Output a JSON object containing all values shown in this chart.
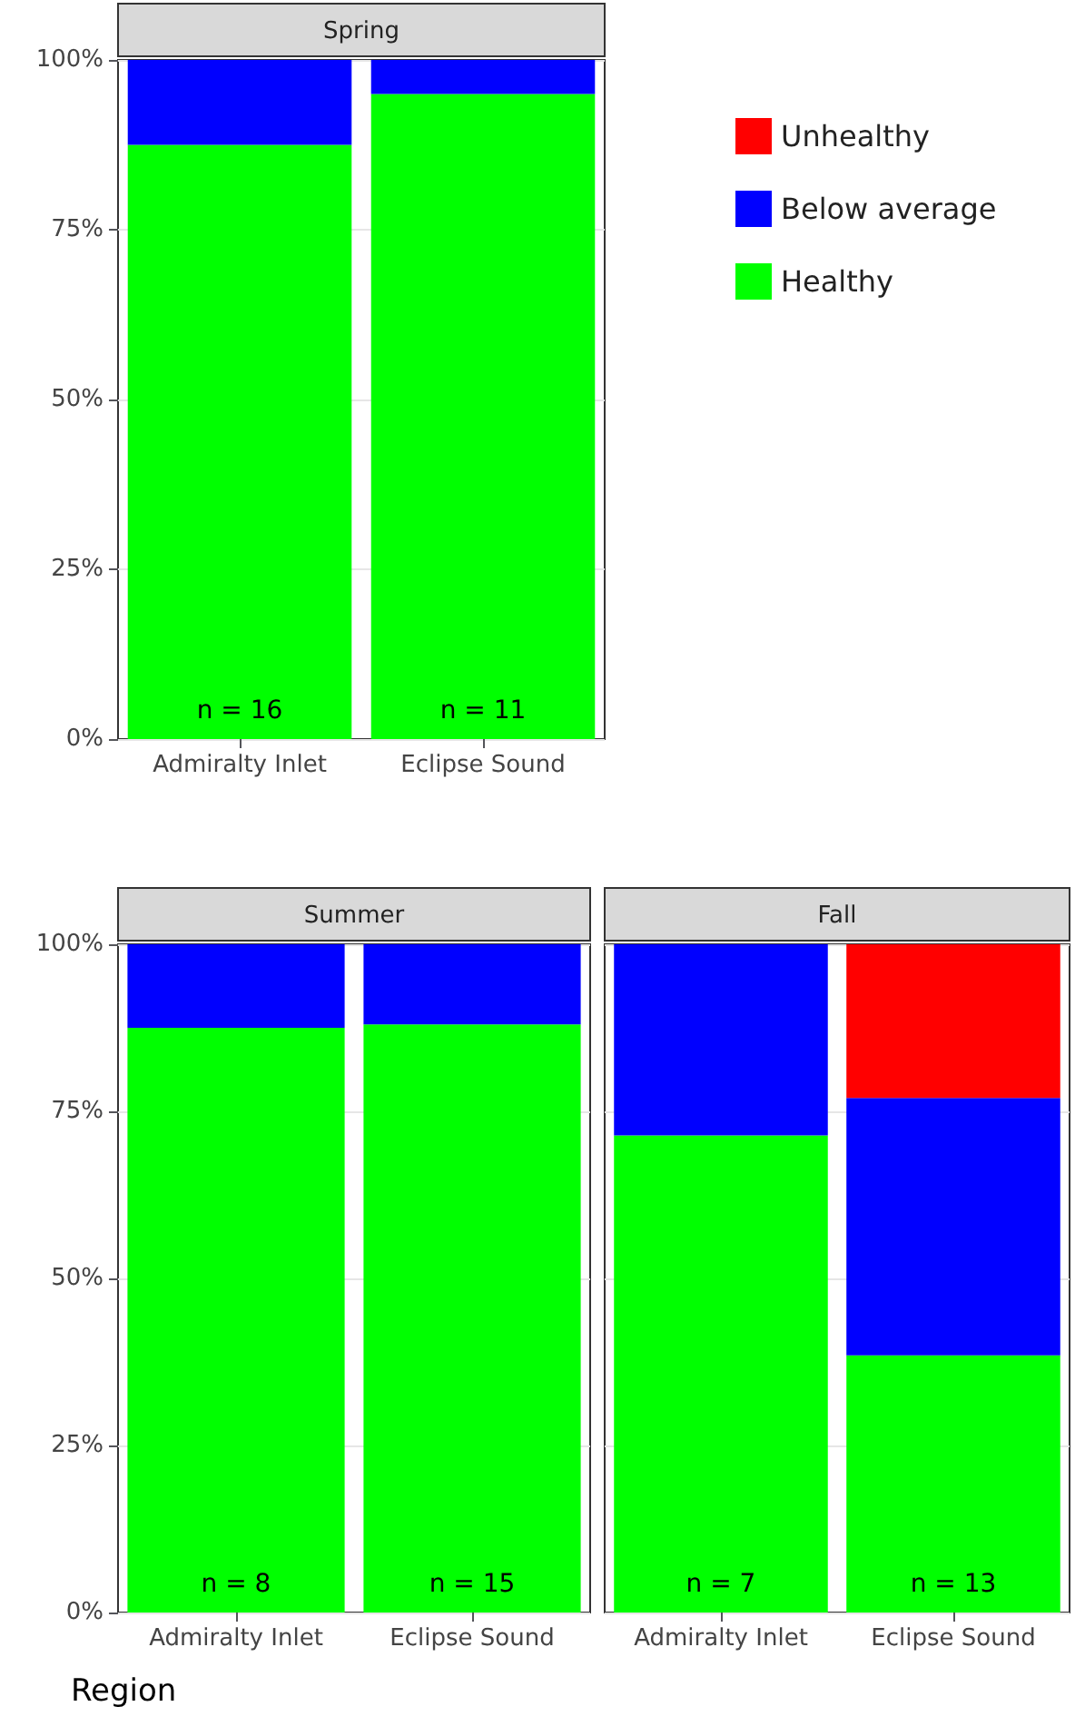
{
  "chart_data": [
    {
      "type": "bar",
      "title": "Spring",
      "stacked": true,
      "categories": [
        "Admiralty Inlet",
        "Eclipse Sound"
      ],
      "ylim": [
        0,
        100
      ],
      "yticks": [
        {
          "value": 0,
          "label": "0%"
        },
        {
          "value": 25,
          "label": "25%"
        },
        {
          "value": 50,
          "label": "50%"
        },
        {
          "value": 75,
          "label": "75%"
        },
        {
          "value": 100,
          "label": "100%"
        }
      ],
      "grid": "y",
      "series": [
        {
          "color": "#00ff00",
          "values": [
            87.5,
            95
          ]
        },
        {
          "color": "#0000ff",
          "values": [
            12.5,
            5
          ]
        }
      ],
      "annotations": [
        "n = 16",
        "n = 11"
      ]
    },
    {
      "type": "bar",
      "title": "Summer",
      "xlabel": "Region",
      "stacked": true,
      "categories": [
        "Admiralty Inlet",
        "Eclipse Sound"
      ],
      "ylim": [
        0,
        100
      ],
      "yticks": [
        {
          "value": 0,
          "label": "0%"
        },
        {
          "value": 25,
          "label": "25%"
        },
        {
          "value": 50,
          "label": "50%"
        },
        {
          "value": 75,
          "label": "75%"
        },
        {
          "value": 100,
          "label": "100%"
        }
      ],
      "grid": "y",
      "series": [
        {
          "color": "#00ff00",
          "values": [
            87.5,
            88
          ]
        },
        {
          "color": "#0000ff",
          "values": [
            12.5,
            12
          ]
        }
      ],
      "annotations": [
        "n = 8",
        "n = 15"
      ]
    },
    {
      "type": "bar",
      "title": "Fall",
      "stacked": true,
      "categories": [
        "Admiralty Inlet",
        "Eclipse Sound"
      ],
      "ylim": [
        0,
        100
      ],
      "yticks": [
        {
          "value": 0,
          "label": null
        },
        {
          "value": 25,
          "label": null
        },
        {
          "value": 50,
          "label": null
        },
        {
          "value": 75,
          "label": null
        },
        {
          "value": 100,
          "label": null
        }
      ],
      "grid": "y",
      "tick_labels": "x",
      "legend": "right",
      "series": [
        {
          "name": "Healthy",
          "color": "#00ff00",
          "values": [
            71.4,
            38.5
          ]
        },
        {
          "name": "Below average",
          "color": "#0000ff",
          "values": [
            28.6,
            38.5
          ]
        },
        {
          "name": "Unhealthy",
          "color": "#ff0000",
          "values": [
            null,
            23
          ]
        }
      ],
      "annotations": [
        "n = 7",
        "n = 13"
      ]
    }
  ]
}
